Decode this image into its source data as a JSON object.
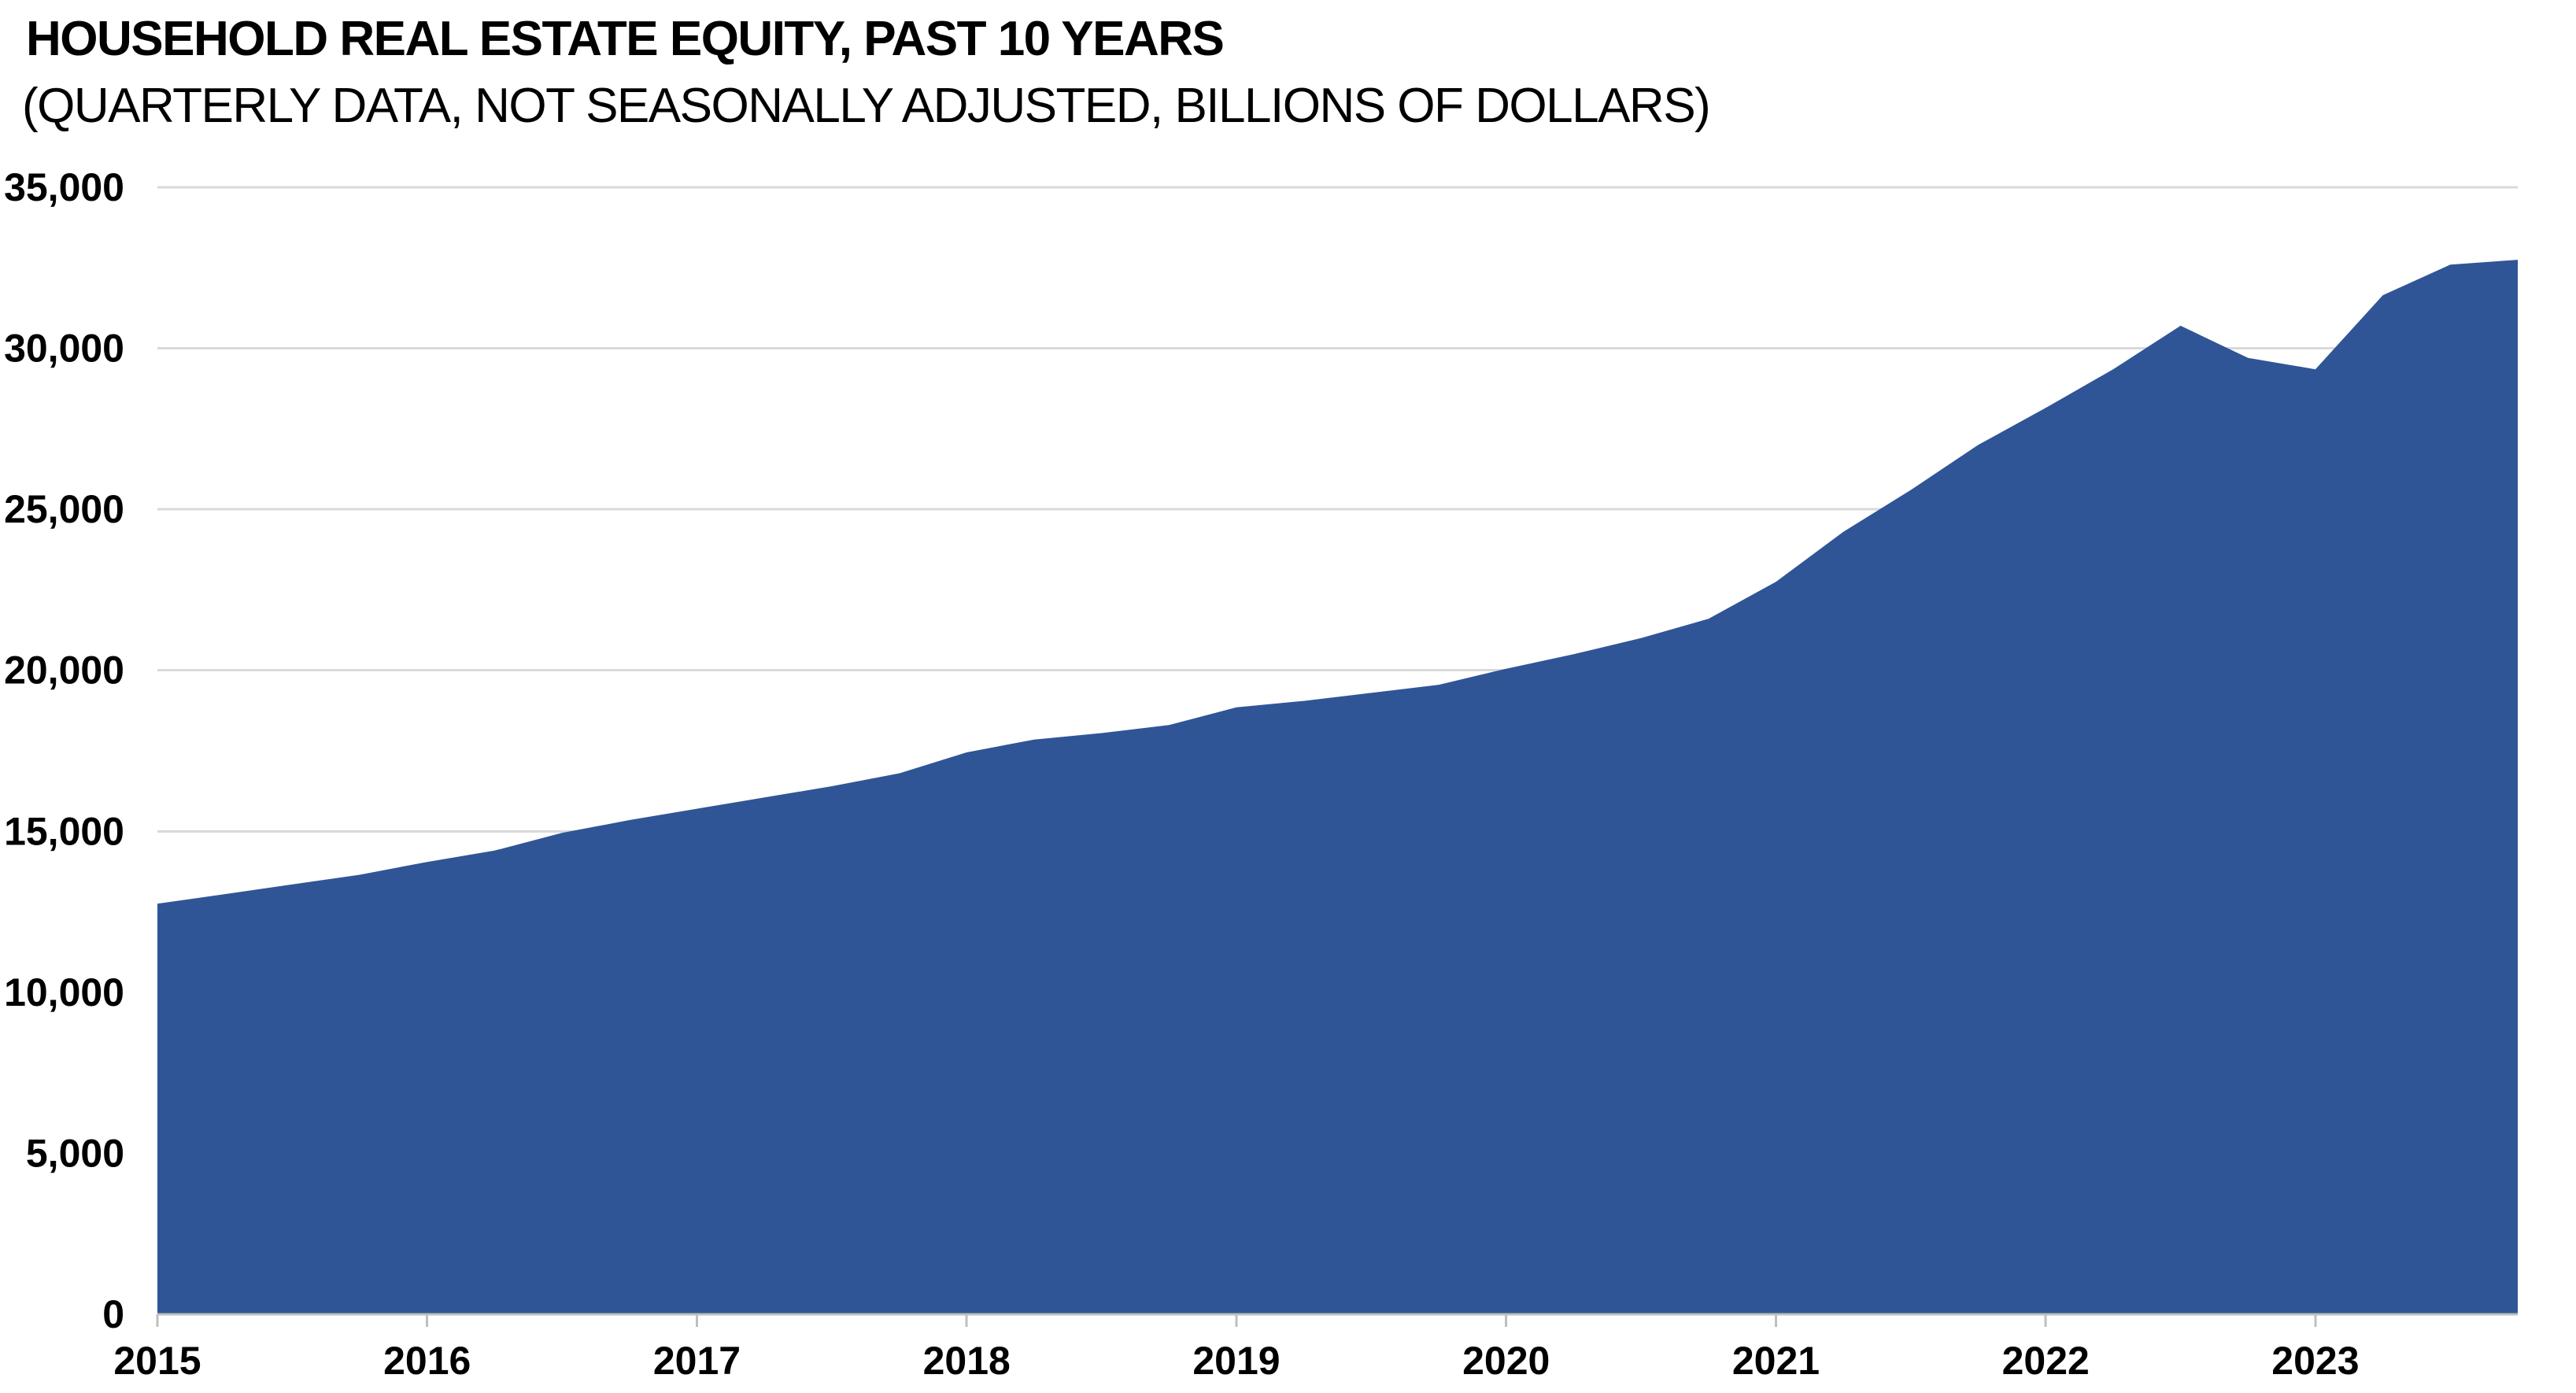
{
  "title": "HOUSEHOLD REAL ESTATE EQUITY, PAST 10 YEARS",
  "subtitle": "(QUARTERLY DATA, NOT SEASONALLY ADJUSTED, BILLIONS OF DOLLARS)",
  "chart_data": {
    "type": "area",
    "title": "HOUSEHOLD REAL ESTATE EQUITY, PAST 10 YEARS",
    "subtitle": "(QUARTERLY DATA, NOT SEASONALLY ADJUSTED, BILLIONS OF DOLLARS)",
    "series_name": "Household real estate equity, billions of dollars",
    "x": [
      "2014 Q4",
      "2015 Q1",
      "2015 Q2",
      "2015 Q3",
      "2015 Q4",
      "2016 Q1",
      "2016 Q2",
      "2016 Q3",
      "2016 Q4",
      "2017 Q1",
      "2017 Q2",
      "2017 Q3",
      "2017 Q4",
      "2018 Q1",
      "2018 Q2",
      "2018 Q3",
      "2018 Q4",
      "2019 Q1",
      "2019 Q2",
      "2019 Q3",
      "2019 Q4",
      "2020 Q1",
      "2020 Q2",
      "2020 Q3",
      "2020 Q4",
      "2021 Q1",
      "2021 Q2",
      "2021 Q3",
      "2021 Q4",
      "2022 Q1",
      "2022 Q2",
      "2022 Q3",
      "2022 Q4",
      "2023 Q1",
      "2023 Q2",
      "2023 Q3"
    ],
    "values": [
      12750,
      13050,
      13350,
      13650,
      14050,
      14400,
      14950,
      15350,
      15700,
      16050,
      16400,
      16800,
      17450,
      17850,
      18050,
      18300,
      18850,
      19050,
      19300,
      19550,
      20050,
      20500,
      21000,
      21600,
      22750,
      24300,
      25600,
      27000,
      28150,
      29350,
      30700,
      29700,
      29350,
      31650,
      32600,
      32750
    ],
    "x_ticks": [
      {
        "label": "2015",
        "quarter_index": 0
      },
      {
        "label": "2016",
        "quarter_index": 4
      },
      {
        "label": "2017",
        "quarter_index": 8
      },
      {
        "label": "2018",
        "quarter_index": 12
      },
      {
        "label": "2019",
        "quarter_index": 16
      },
      {
        "label": "2020",
        "quarter_index": 20
      },
      {
        "label": "2021",
        "quarter_index": 24
      },
      {
        "label": "2022",
        "quarter_index": 28
      },
      {
        "label": "2023",
        "quarter_index": 32
      }
    ],
    "y_ticks": [
      {
        "label": "0",
        "value": 0
      },
      {
        "label": "5,000",
        "value": 5000
      },
      {
        "label": "10,000",
        "value": 10000
      },
      {
        "label": "15,000",
        "value": 15000
      },
      {
        "label": "20,000",
        "value": 20000
      },
      {
        "label": "25,000",
        "value": 25000
      },
      {
        "label": "30,000",
        "value": 30000
      },
      {
        "label": "35,000",
        "value": 35000
      }
    ],
    "ylim": [
      0,
      35000
    ],
    "y_step": 5000,
    "grid": true,
    "legend": "none",
    "area_color": "#2F5597",
    "gridline_color": "#D9D9D9",
    "axis_color": "#BFBFBF",
    "text_color": "#000000",
    "background_color": "#FFFFFF"
  }
}
